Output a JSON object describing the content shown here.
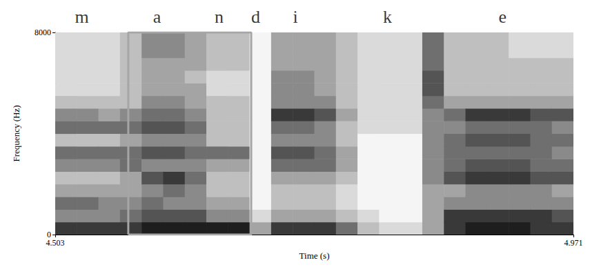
{
  "chart_data": {
    "type": "spectrogram",
    "xlabel": "Time (s)",
    "ylabel": "Frequency (Hz)",
    "xlim": [
      4.503,
      4.971
    ],
    "xticks": [
      4.503,
      4.971
    ],
    "ylim": [
      0,
      8000
    ],
    "yticks": [
      0,
      8000
    ],
    "segments": [
      {
        "label": "m",
        "time": 4.527
      },
      {
        "label": "a",
        "time": 4.595
      },
      {
        "label": "n",
        "time": 4.651
      },
      {
        "label": "d",
        "time": 4.684
      },
      {
        "label": "i",
        "time": 4.72
      },
      {
        "label": "k",
        "time": 4.803
      },
      {
        "label": "e",
        "time": 4.907
      }
    ],
    "highlight": {
      "x": [
        4.569,
        4.68
      ],
      "y": [
        0,
        8000
      ],
      "color": "#a6a6a6"
    },
    "cells": {
      "time_edges": [
        4.503,
        4.5225,
        4.542,
        4.5615,
        4.581,
        4.6005,
        4.62,
        4.6395,
        4.659,
        4.6785,
        4.698,
        4.7175,
        4.737,
        4.7565,
        4.776,
        4.7955,
        4.815,
        4.8345,
        4.854,
        4.8735,
        4.893,
        4.9125,
        4.932,
        4.9515,
        4.971
      ],
      "freq_edges": [
        0,
        500,
        1000,
        1500,
        2000,
        2500,
        3000,
        3500,
        4000,
        4500,
        5000,
        5500,
        6000,
        6500,
        7000,
        7500,
        8000
      ],
      "intensity": [
        [
          8,
          5,
          6,
          4,
          3,
          5,
          6,
          3,
          6,
          5,
          3,
          2,
          2,
          2,
          2,
          2
        ],
        [
          8,
          5,
          6,
          4,
          3,
          5,
          6,
          3,
          6,
          5,
          3,
          2,
          2,
          2,
          2,
          2
        ],
        [
          8,
          5,
          5,
          4,
          3,
          5,
          6,
          3,
          6,
          4,
          3,
          2,
          2,
          2,
          2,
          2
        ],
        [
          8,
          6,
          5,
          4,
          4,
          6,
          6,
          4,
          6,
          5,
          3,
          3,
          3,
          3,
          3,
          3
        ],
        [
          9,
          7,
          6,
          5,
          7,
          5,
          7,
          5,
          7,
          6,
          5,
          4,
          4,
          4,
          5,
          5
        ],
        [
          9,
          7,
          5,
          6,
          8,
          5,
          7,
          5,
          7,
          6,
          5,
          4,
          4,
          4,
          5,
          5
        ],
        [
          9,
          7,
          5,
          5,
          6,
          5,
          6,
          5,
          6,
          5,
          4,
          4,
          3,
          4,
          4,
          4
        ],
        [
          9,
          5,
          4,
          3,
          3,
          4,
          6,
          3,
          3,
          3,
          3,
          2,
          2,
          3,
          3,
          3
        ],
        [
          9,
          5,
          4,
          3,
          3,
          4,
          6,
          3,
          3,
          3,
          3,
          2,
          2,
          3,
          3,
          3
        ],
        [
          4,
          2,
          1,
          1,
          1,
          1,
          1,
          1,
          1,
          1,
          1,
          1,
          1,
          1,
          1,
          1
        ],
        [
          8,
          4,
          3,
          3,
          4,
          6,
          7,
          5,
          6,
          8,
          5,
          5,
          5,
          4,
          4,
          4
        ],
        [
          8,
          4,
          3,
          3,
          4,
          6,
          7,
          5,
          6,
          8,
          5,
          5,
          5,
          4,
          4,
          4
        ],
        [
          8,
          4,
          3,
          3,
          4,
          6,
          6,
          5,
          5,
          7,
          5,
          4,
          4,
          4,
          4,
          4
        ],
        [
          6,
          3,
          2,
          2,
          3,
          4,
          4,
          3,
          3,
          4,
          3,
          3,
          3,
          3,
          3,
          3
        ],
        [
          3,
          2,
          1,
          1,
          1,
          1,
          1,
          1,
          2,
          2,
          2,
          2,
          2,
          2,
          2,
          2
        ],
        [
          2,
          1,
          1,
          1,
          1,
          1,
          1,
          1,
          2,
          2,
          2,
          2,
          2,
          2,
          2,
          2
        ],
        [
          2,
          1,
          1,
          1,
          1,
          1,
          1,
          1,
          2,
          2,
          2,
          2,
          2,
          2,
          2,
          2
        ],
        [
          4,
          4,
          4,
          4,
          5,
          5,
          5,
          5,
          5,
          5,
          6,
          7,
          7,
          6,
          6,
          6
        ],
        [
          8,
          8,
          5,
          4,
          7,
          6,
          6,
          6,
          5,
          6,
          4,
          3,
          3,
          3,
          3,
          3
        ],
        [
          9,
          8,
          5,
          5,
          8,
          7,
          6,
          7,
          6,
          8,
          4,
          3,
          3,
          3,
          3,
          3
        ],
        [
          9,
          8,
          5,
          5,
          8,
          7,
          6,
          7,
          6,
          8,
          4,
          3,
          3,
          3,
          3,
          3
        ],
        [
          9,
          8,
          5,
          5,
          8,
          7,
          6,
          7,
          6,
          8,
          4,
          3,
          3,
          3,
          2,
          2
        ],
        [
          8,
          8,
          5,
          5,
          7,
          6,
          6,
          6,
          6,
          7,
          4,
          3,
          3,
          3,
          2,
          2
        ],
        [
          8,
          7,
          5,
          4,
          7,
          6,
          5,
          6,
          5,
          7,
          4,
          3,
          3,
          3,
          2,
          2
        ]
      ]
    }
  }
}
